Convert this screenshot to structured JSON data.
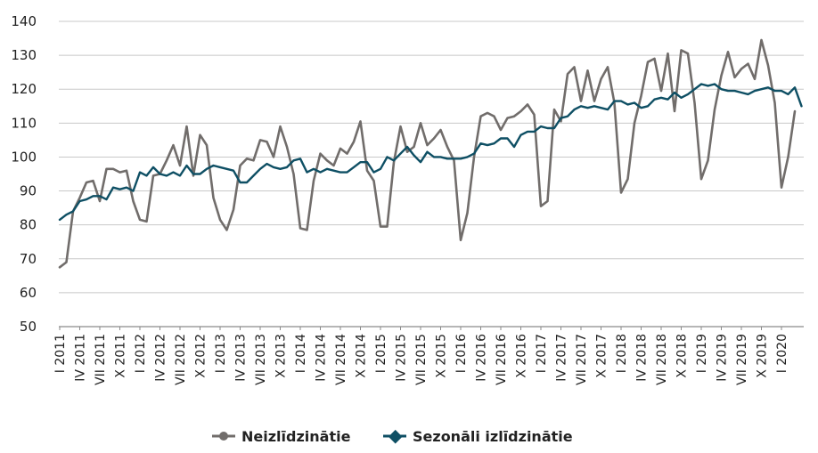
{
  "chart_data": {
    "type": "line",
    "ylim": [
      50,
      140
    ],
    "yticks": [
      50,
      60,
      70,
      80,
      90,
      100,
      110,
      120,
      130,
      140
    ],
    "grid": "horizontal",
    "legend_position": "bottom",
    "x_tick_labels": [
      "I 2011",
      "IV 2011",
      "VII 2011",
      "X 2011",
      "I 2012",
      "IV 2012",
      "VII 2012",
      "X 2012",
      "I 2013",
      "IV 2013",
      "VII 2013",
      "X 2013",
      "I 2014",
      "IV 2014",
      "VII 2014",
      "X 2014",
      "I 2015",
      "IV 2015",
      "VII 2015",
      "X 2015",
      "I 2016",
      "IV 2016",
      "VII 2016",
      "X 2016",
      "I 2017",
      "IV 2017",
      "VII 2017",
      "X 2017",
      "I 2018",
      "IV 2018",
      "VII 2018",
      "X 2018",
      "I 2019",
      "IV 2019",
      "VII 2019",
      "X 2019",
      "I 2020"
    ],
    "series": [
      {
        "name": "Neizlīdzinātie",
        "color": "#716d6b",
        "values": [
          67.5,
          69,
          84,
          88,
          92.5,
          93,
          87,
          96.5,
          96.5,
          95.5,
          96,
          87,
          81.5,
          81,
          94.5,
          95,
          99,
          103.5,
          97.5,
          109,
          94.5,
          106.5,
          103.5,
          88,
          81.5,
          78.5,
          84.5,
          97.5,
          99.5,
          99,
          105,
          104.5,
          100,
          109,
          103,
          95,
          79,
          78.5,
          93,
          101,
          99,
          97.5,
          102.5,
          101,
          104.5,
          110.5,
          96,
          93,
          79.5,
          79.5,
          98.5,
          109,
          101.5,
          103,
          110,
          103.5,
          105.5,
          108,
          103,
          99,
          75.5,
          83.5,
          100,
          112,
          113,
          112,
          108,
          111.5,
          112,
          113.5,
          115.5,
          112.5,
          85.5,
          87,
          114,
          110.5,
          124.5,
          126.5,
          116.5,
          125.5,
          116.5,
          123,
          126.5,
          116,
          89.5,
          93.5,
          110,
          118,
          128,
          129,
          119.5,
          130.5,
          113.5,
          131.5,
          130.5,
          116,
          93.5,
          99,
          114,
          124,
          131,
          123.5,
          126,
          127.5,
          123,
          134.5,
          127,
          116,
          91,
          100,
          113.5
        ]
      },
      {
        "name": "Sezonāli izlīdzinātie",
        "color": "#0e4f64",
        "values": [
          81.5,
          83,
          84,
          87,
          87.5,
          88.5,
          88.5,
          87.5,
          91,
          90.5,
          91,
          90,
          95.5,
          94.5,
          97,
          95,
          94.5,
          95.5,
          94.5,
          97.5,
          95,
          95,
          96.5,
          97.5,
          97,
          96.5,
          96,
          92.5,
          92.5,
          94.5,
          96.5,
          98,
          97,
          96.5,
          97,
          99,
          99.5,
          95.5,
          96.5,
          95.5,
          96.5,
          96,
          95.5,
          95.5,
          97,
          98.5,
          98.5,
          95.5,
          96.5,
          100,
          99,
          101,
          103,
          100.5,
          98.5,
          101.5,
          100,
          100,
          99.5,
          99.5,
          99.5,
          100,
          101,
          104,
          103.5,
          104,
          105.5,
          105.5,
          103,
          106.5,
          107.5,
          107.5,
          109,
          108.5,
          108.5,
          111.5,
          112,
          114,
          115,
          114.5,
          115,
          114.5,
          114,
          116.5,
          116.5,
          115.5,
          116,
          114.5,
          115,
          117,
          117.5,
          117,
          119,
          117.5,
          118.5,
          120,
          121.5,
          121,
          121.5,
          120,
          119.5,
          119.5,
          119,
          118.5,
          119.5,
          120,
          120.5,
          119.5,
          119.5,
          118.5,
          120.5,
          115
        ]
      }
    ]
  }
}
